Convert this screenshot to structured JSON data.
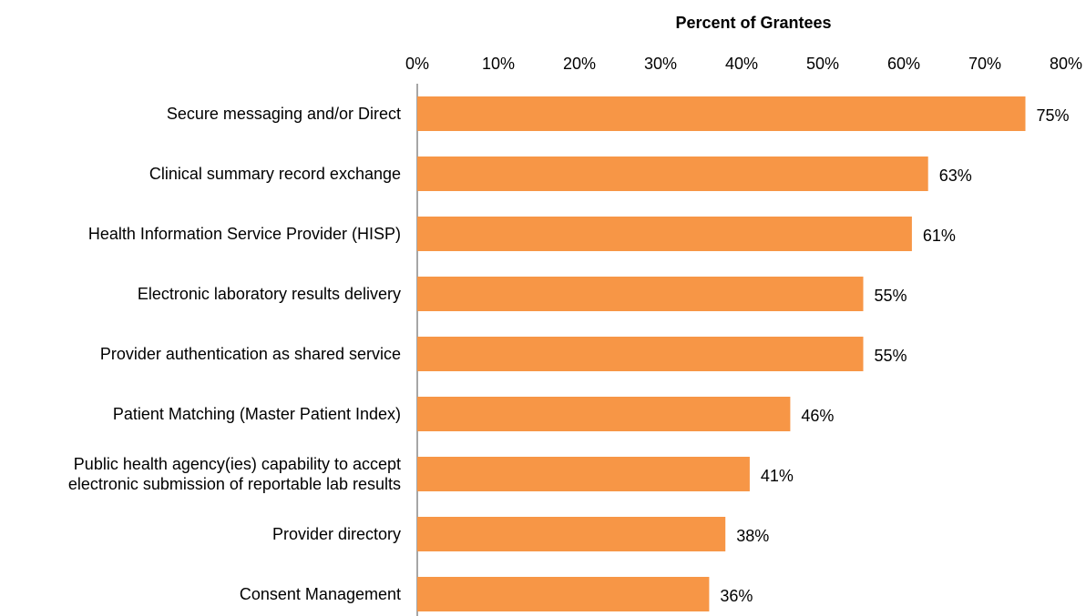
{
  "chart_data": {
    "type": "bar",
    "orientation": "horizontal",
    "x_label": "Percent of Grantees",
    "categories": [
      "Secure messaging and/or Direct",
      "Clinical summary record exchange",
      "Health Information Service Provider (HISP)",
      "Electronic laboratory results delivery",
      "Provider authentication as shared service",
      "Patient Matching (Master Patient Index)",
      "Public health agency(ies) capability to accept\nelectronic submission of reportable lab results",
      "Provider directory",
      "Consent Management"
    ],
    "values": [
      75,
      63,
      61,
      55,
      55,
      46,
      41,
      38,
      36
    ],
    "value_labels": [
      "75%",
      "63%",
      "61%",
      "55%",
      "55%",
      "46%",
      "41%",
      "38%",
      "36%"
    ],
    "color": "#f79646",
    "xlim": [
      0,
      80
    ],
    "xticks": [
      {
        "value": 0,
        "label": "0%"
      },
      {
        "value": 10,
        "label": "10%"
      },
      {
        "value": 20,
        "label": "20%"
      },
      {
        "value": 30,
        "label": "30%"
      },
      {
        "value": 40,
        "label": "40%"
      },
      {
        "value": 50,
        "label": "50%"
      },
      {
        "value": 60,
        "label": "60%"
      },
      {
        "value": 70,
        "label": "70%"
      },
      {
        "value": 80,
        "label": "80%"
      }
    ],
    "grid": false
  }
}
